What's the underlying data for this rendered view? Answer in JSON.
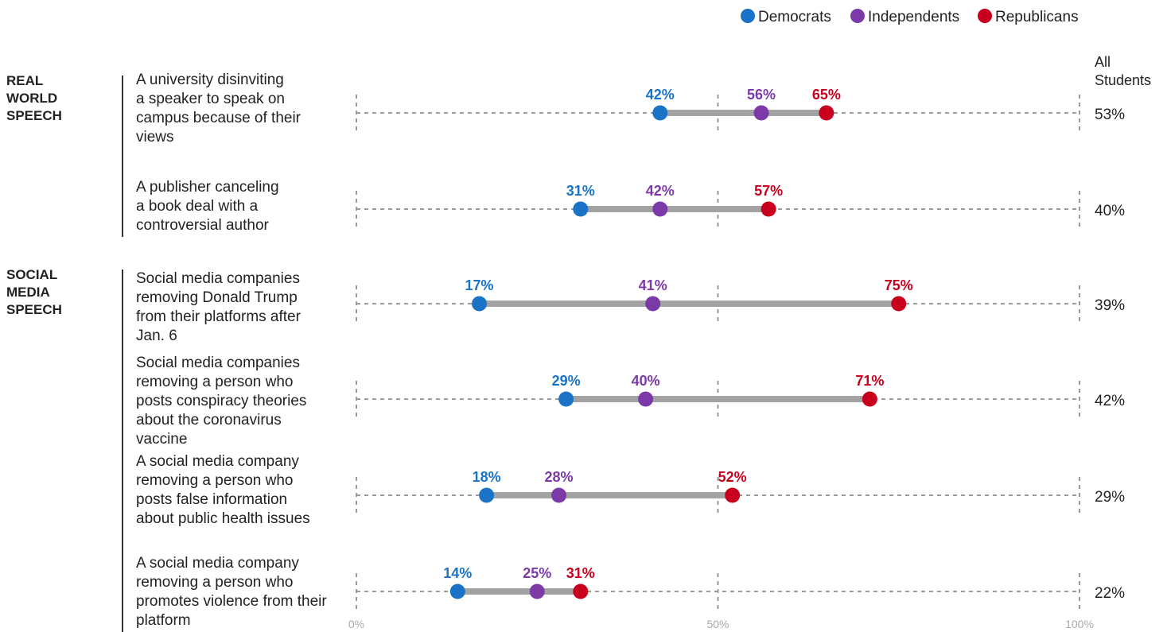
{
  "legend": [
    {
      "name": "Democrats",
      "color": "#1a73c6"
    },
    {
      "name": "Independents",
      "color": "#7b3aa8"
    },
    {
      "name": "Republicans",
      "color": "#c8001e"
    }
  ],
  "all_students_header": [
    "All",
    "Students"
  ],
  "axis_ticks": [
    "0%",
    "50%",
    "100%"
  ],
  "groups": [
    {
      "title": [
        "REAL",
        "WORLD",
        "SPEECH"
      ]
    },
    {
      "title": [
        "SOCIAL",
        "MEDIA",
        "SPEECH"
      ]
    }
  ],
  "chart_data": {
    "type": "dot",
    "series": [
      {
        "name": "Democrats",
        "color": "#1a73c6",
        "values": [
          42,
          31,
          17,
          29,
          18,
          14
        ]
      },
      {
        "name": "Independents",
        "color": "#7b3aa8",
        "values": [
          56,
          42,
          41,
          40,
          28,
          25
        ]
      },
      {
        "name": "Republicans",
        "color": "#c8001e",
        "values": [
          65,
          57,
          75,
          71,
          52,
          31
        ]
      }
    ],
    "all_students": [
      "53%",
      "40%",
      "39%",
      "42%",
      "29%",
      "22%"
    ],
    "categories": [
      {
        "group": 0,
        "label": [
          "A university disinviting",
          "a speaker to speak on",
          "campus because of their",
          "views"
        ]
      },
      {
        "group": 0,
        "label": [
          "A publisher canceling",
          "a book deal with a",
          "controversial author"
        ]
      },
      {
        "group": 1,
        "label": [
          "Social media companies",
          "removing Donald Trump",
          "from their platforms after",
          "Jan. 6"
        ]
      },
      {
        "group": 1,
        "label": [
          "Social media companies",
          "removing a person who",
          "posts conspiracy theories",
          "about the coronavirus",
          "vaccine"
        ]
      },
      {
        "group": 1,
        "label": [
          "A social media company",
          "removing a person who",
          "posts false information",
          "about public health issues"
        ]
      },
      {
        "group": 1,
        "label": [
          "A social media company",
          "removing a person who",
          "promotes violence from their",
          "platform"
        ]
      }
    ],
    "xlim": [
      0,
      100
    ],
    "grid": true
  }
}
